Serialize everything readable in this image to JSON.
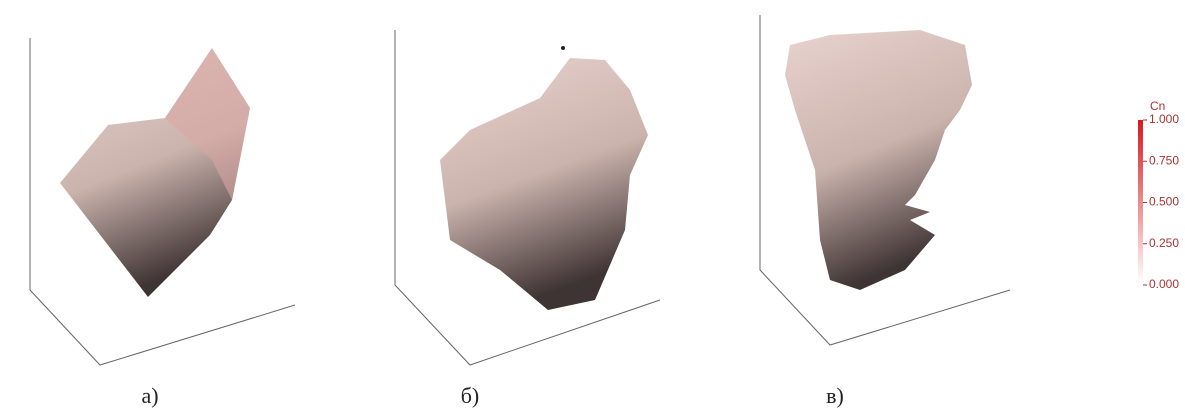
{
  "panels": [
    {
      "label": "а)"
    },
    {
      "label": "б)"
    },
    {
      "label": "в)"
    }
  ],
  "colorbar": {
    "title": "Cn",
    "range": [
      0,
      1
    ],
    "ticks": [
      {
        "value": 1,
        "label": "1.000"
      },
      {
        "value": 0.75,
        "label": "0.750"
      },
      {
        "value": 0.5,
        "label": "0.500"
      },
      {
        "value": 0.25,
        "label": "0.250"
      },
      {
        "value": 0,
        "label": "0.000"
      }
    ]
  }
}
